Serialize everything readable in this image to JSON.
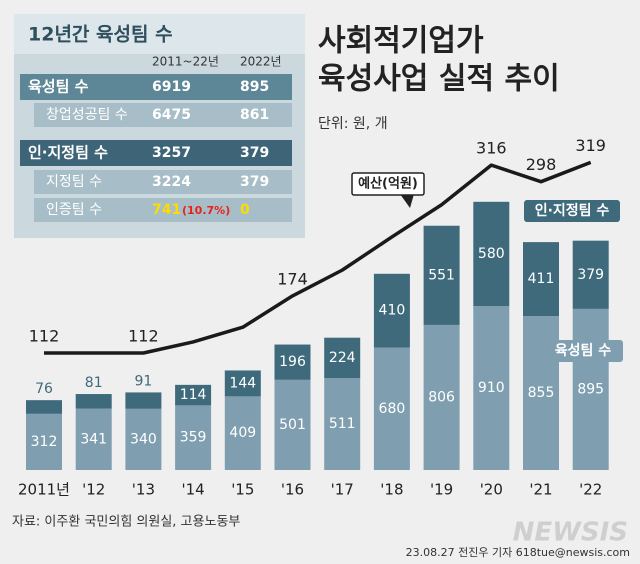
{
  "chart_data": {
    "type": "bar",
    "title": [
      "사회적기업가",
      "육성사업 실적 추이"
    ],
    "subtitle": "단위: 원, 개",
    "categories": [
      "2011년",
      "'12",
      "'13",
      "'14",
      "'15",
      "'16",
      "'17",
      "'18",
      "'19",
      "'20",
      "'21",
      "'22"
    ],
    "series": [
      {
        "name": "육성팀 수",
        "color": "#7f9fb1",
        "values": [
          312,
          341,
          340,
          359,
          409,
          501,
          511,
          680,
          806,
          910,
          855,
          895
        ]
      },
      {
        "name": "인·지정팀 수",
        "color": "#3e6a7c",
        "values": [
          76,
          81,
          91,
          114,
          144,
          196,
          224,
          410,
          551,
          580,
          411,
          379
        ]
      },
      {
        "name": "예산(억원)",
        "color": "#1a1a1a",
        "type": "line",
        "axis": "y2",
        "values": [
          112,
          112,
          112,
          124,
          140,
          174,
          202,
          238,
          273,
          316,
          298,
          319
        ],
        "value_labels": [
          "112",
          null,
          "112",
          null,
          null,
          "174",
          null,
          null,
          null,
          "316",
          "298",
          "319"
        ]
      }
    ],
    "stacked": true,
    "ylim": [
      0,
      2400
    ],
    "y2lim": [
      -15,
      454
    ],
    "source": "자료: 이주환 국민의힘 의원실, 고용노동부",
    "credit": "23.08.27 전진우 기자 618tue@newsis.com",
    "watermark": "NEWSIS"
  },
  "table": {
    "title": "12년간 육성팀 수",
    "columns": [
      "2011~22년",
      "2022년"
    ],
    "rows": [
      {
        "name": "육성팀 수",
        "values": [
          "6919",
          "895"
        ]
      },
      {
        "name": "창업성공팀 수",
        "values": [
          "6475",
          "861"
        ]
      },
      {
        "name": "인·지정팀 수",
        "values": [
          "3257",
          "379"
        ]
      },
      {
        "name": "지정팀 수",
        "values": [
          "3224",
          "379"
        ]
      },
      {
        "name": "인증팀 수",
        "values": [
          "741",
          "0"
        ],
        "share": "(10.7%)"
      }
    ]
  }
}
